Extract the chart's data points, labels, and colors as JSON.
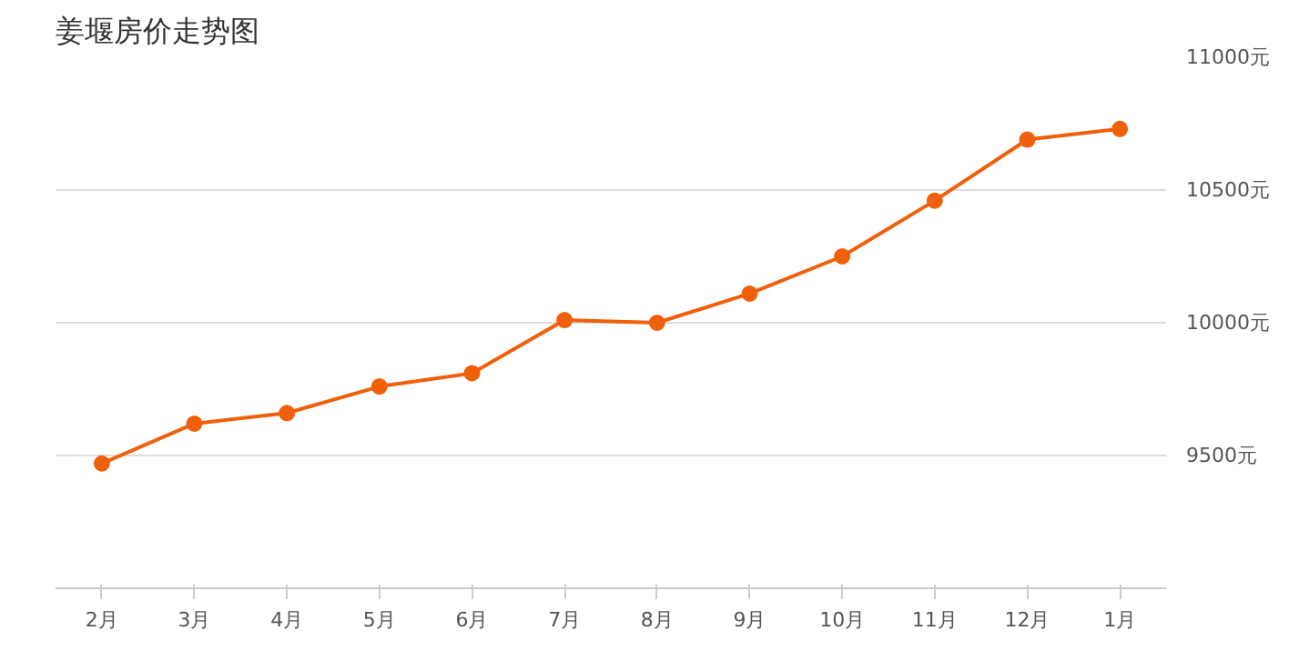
{
  "chart_data": {
    "type": "line",
    "title": "姜堰房价走势图",
    "categories": [
      "2月",
      "3月",
      "4月",
      "5月",
      "6月",
      "7月",
      "8月",
      "9月",
      "10月",
      "11月",
      "12月",
      "1月"
    ],
    "series": [
      {
        "color": "#f0600a",
        "values": [
          9470,
          9620,
          9660,
          9760,
          9810,
          10010,
          10000,
          10110,
          10250,
          10460,
          10690,
          10730
        ]
      }
    ],
    "ylim": [
      9000,
      11000
    ],
    "yticks": [
      {
        "value": 9500,
        "label": "9500元"
      },
      {
        "value": 10000,
        "label": "10000元"
      },
      {
        "value": 10500,
        "label": "10500元"
      },
      {
        "value": 11000,
        "label": "11000元"
      }
    ],
    "grid": "y",
    "marker": "circle",
    "line_style": "solid"
  }
}
